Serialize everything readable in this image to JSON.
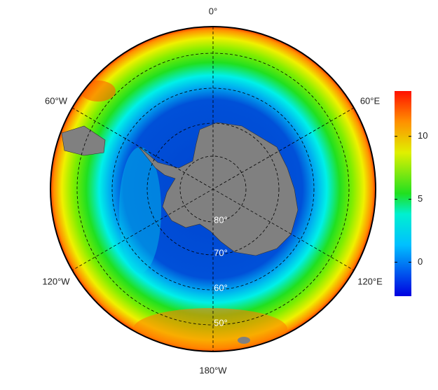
{
  "map": {
    "longitude_labels": [
      "0°",
      "60°E",
      "120°E",
      "180°W",
      "120°W",
      "60°W"
    ],
    "latitude_labels": [
      "80°",
      "70°",
      "60°",
      "50°"
    ]
  },
  "colorbar": {
    "lim": [
      -2.7,
      13.6
    ],
    "ticks": [
      0,
      5,
      10
    ]
  }
}
